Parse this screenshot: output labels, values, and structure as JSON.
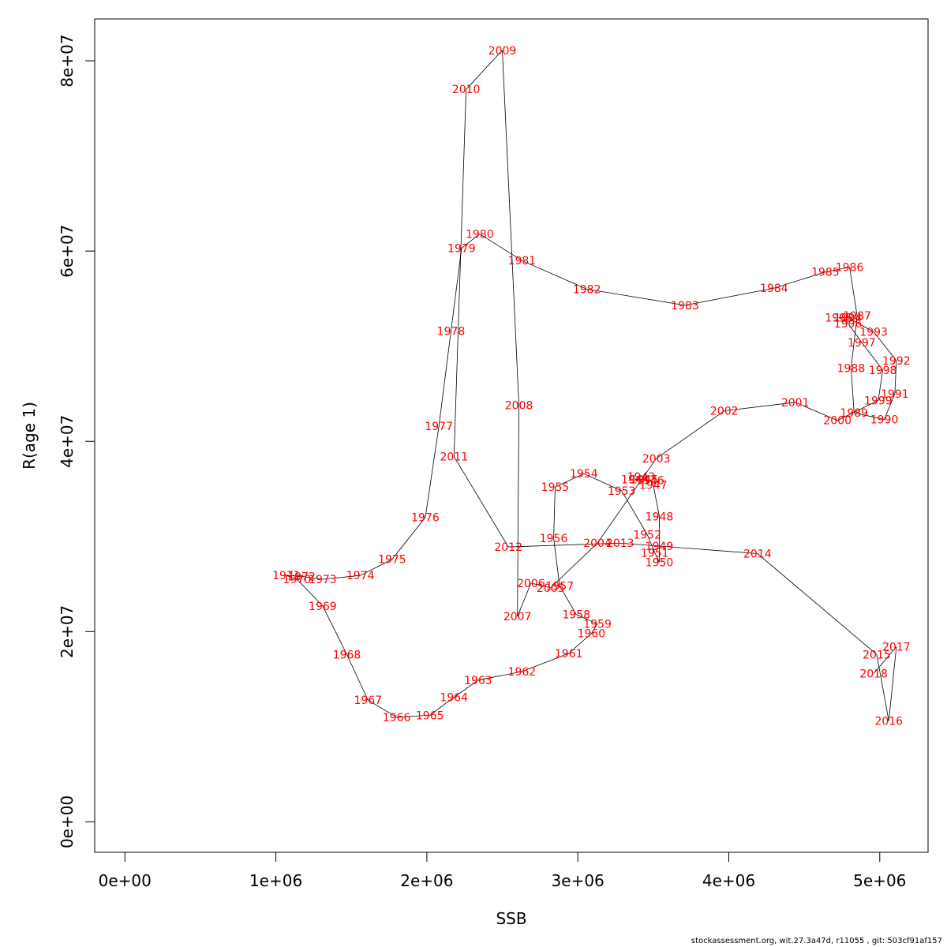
{
  "chart_data": {
    "type": "line",
    "xlabel": "SSB",
    "ylabel": "R(age 1)",
    "xlim": [
      -200000,
      5320000
    ],
    "ylim": [
      -3200000,
      84400000
    ],
    "x_ticks": [
      {
        "value": 0,
        "label": "0e+00"
      },
      {
        "value": 1000000,
        "label": "1e+06"
      },
      {
        "value": 2000000,
        "label": "2e+06"
      },
      {
        "value": 3000000,
        "label": "3e+06"
      },
      {
        "value": 4000000,
        "label": "4e+06"
      },
      {
        "value": 5000000,
        "label": "5e+06"
      }
    ],
    "y_ticks": [
      {
        "value": 0,
        "label": "0e+00"
      },
      {
        "value": 20000000,
        "label": "2e+07"
      },
      {
        "value": 40000000,
        "label": "4e+07"
      },
      {
        "value": 60000000,
        "label": "6e+07"
      },
      {
        "value": 80000000,
        "label": "8e+07"
      }
    ],
    "points": [
      {
        "year": "1943",
        "x": 3420000,
        "y": 36300000
      },
      {
        "year": "1944",
        "x": 3380000,
        "y": 36000000
      },
      {
        "year": "1945",
        "x": 3440000,
        "y": 36000000
      },
      {
        "year": "1946",
        "x": 3480000,
        "y": 35900000
      },
      {
        "year": "1947",
        "x": 3500000,
        "y": 35400000
      },
      {
        "year": "1948",
        "x": 3540000,
        "y": 32100000
      },
      {
        "year": "1949",
        "x": 3540000,
        "y": 29000000
      },
      {
        "year": "1950",
        "x": 3540000,
        "y": 27300000
      },
      {
        "year": "1951",
        "x": 3510000,
        "y": 28300000
      },
      {
        "year": "1952",
        "x": 3460000,
        "y": 30200000
      },
      {
        "year": "1953",
        "x": 3290000,
        "y": 34800000
      },
      {
        "year": "1954",
        "x": 3040000,
        "y": 36600000
      },
      {
        "year": "1955",
        "x": 2850000,
        "y": 35200000
      },
      {
        "year": "1956",
        "x": 2840000,
        "y": 29800000
      },
      {
        "year": "1957",
        "x": 2880000,
        "y": 24800000
      },
      {
        "year": "1958",
        "x": 2990000,
        "y": 21800000
      },
      {
        "year": "1959",
        "x": 3130000,
        "y": 20800000
      },
      {
        "year": "1960",
        "x": 3090000,
        "y": 19800000
      },
      {
        "year": "1961",
        "x": 2940000,
        "y": 17700000
      },
      {
        "year": "1962",
        "x": 2630000,
        "y": 15800000
      },
      {
        "year": "1963",
        "x": 2340000,
        "y": 14900000
      },
      {
        "year": "1964",
        "x": 2180000,
        "y": 13100000
      },
      {
        "year": "1965",
        "x": 2020000,
        "y": 11200000
      },
      {
        "year": "1966",
        "x": 1800000,
        "y": 11000000
      },
      {
        "year": "1967",
        "x": 1610000,
        "y": 12800000
      },
      {
        "year": "1968",
        "x": 1470000,
        "y": 17600000
      },
      {
        "year": "1969",
        "x": 1310000,
        "y": 22700000
      },
      {
        "year": "1970",
        "x": 1140000,
        "y": 25500000
      },
      {
        "year": "1971",
        "x": 1070000,
        "y": 25900000
      },
      {
        "year": "1972",
        "x": 1170000,
        "y": 25800000
      },
      {
        "year": "1973",
        "x": 1310000,
        "y": 25500000
      },
      {
        "year": "1974",
        "x": 1560000,
        "y": 25900000
      },
      {
        "year": "1975",
        "x": 1770000,
        "y": 27600000
      },
      {
        "year": "1976",
        "x": 1990000,
        "y": 32000000
      },
      {
        "year": "1977",
        "x": 2080000,
        "y": 41600000
      },
      {
        "year": "1978",
        "x": 2160000,
        "y": 51600000
      },
      {
        "year": "1979",
        "x": 2230000,
        "y": 60300000
      },
      {
        "year": "1980",
        "x": 2350000,
        "y": 61800000
      },
      {
        "year": "1981",
        "x": 2630000,
        "y": 59000000
      },
      {
        "year": "1982",
        "x": 3060000,
        "y": 56000000
      },
      {
        "year": "1983",
        "x": 3710000,
        "y": 54300000
      },
      {
        "year": "1984",
        "x": 4300000,
        "y": 56100000
      },
      {
        "year": "1985",
        "x": 4640000,
        "y": 57800000
      },
      {
        "year": "1986",
        "x": 4800000,
        "y": 58300000
      },
      {
        "year": "1987",
        "x": 4850000,
        "y": 53200000
      },
      {
        "year": "1988",
        "x": 4810000,
        "y": 47700000
      },
      {
        "year": "1989",
        "x": 4830000,
        "y": 43000000
      },
      {
        "year": "1990",
        "x": 5030000,
        "y": 42300000
      },
      {
        "year": "1991",
        "x": 5100000,
        "y": 45000000
      },
      {
        "year": "1992",
        "x": 5110000,
        "y": 48500000
      },
      {
        "year": "1993",
        "x": 4960000,
        "y": 51500000
      },
      {
        "year": "1994",
        "x": 4790000,
        "y": 53000000
      },
      {
        "year": "1995",
        "x": 4730000,
        "y": 53000000
      },
      {
        "year": "1996",
        "x": 4790000,
        "y": 52400000
      },
      {
        "year": "1997",
        "x": 4880000,
        "y": 50400000
      },
      {
        "year": "1998",
        "x": 5020000,
        "y": 47500000
      },
      {
        "year": "1999",
        "x": 4990000,
        "y": 44300000
      },
      {
        "year": "2000",
        "x": 4720000,
        "y": 42200000
      },
      {
        "year": "2001",
        "x": 4440000,
        "y": 44100000
      },
      {
        "year": "2002",
        "x": 3970000,
        "y": 43200000
      },
      {
        "year": "2003",
        "x": 3520000,
        "y": 38200000
      },
      {
        "year": "2004",
        "x": 3130000,
        "y": 29300000
      },
      {
        "year": "2005",
        "x": 2820000,
        "y": 24600000
      },
      {
        "year": "2006",
        "x": 2690000,
        "y": 25100000
      },
      {
        "year": "2007",
        "x": 2600000,
        "y": 21600000
      },
      {
        "year": "2008",
        "x": 2610000,
        "y": 43800000
      },
      {
        "year": "2009",
        "x": 2500000,
        "y": 81100000
      },
      {
        "year": "2010",
        "x": 2260000,
        "y": 77000000
      },
      {
        "year": "2011",
        "x": 2180000,
        "y": 38400000
      },
      {
        "year": "2012",
        "x": 2540000,
        "y": 28900000
      },
      {
        "year": "2013",
        "x": 3280000,
        "y": 29300000
      },
      {
        "year": "2014",
        "x": 4190000,
        "y": 28200000
      },
      {
        "year": "2015",
        "x": 4980000,
        "y": 17600000
      },
      {
        "year": "2016",
        "x": 5060000,
        "y": 10600000
      },
      {
        "year": "2017",
        "x": 5110000,
        "y": 18400000
      },
      {
        "year": "2018",
        "x": 4960000,
        "y": 15600000
      }
    ]
  },
  "footer": "stockassessment.org, wit.27.3a47d, r11055 , git: 503cf91af157"
}
